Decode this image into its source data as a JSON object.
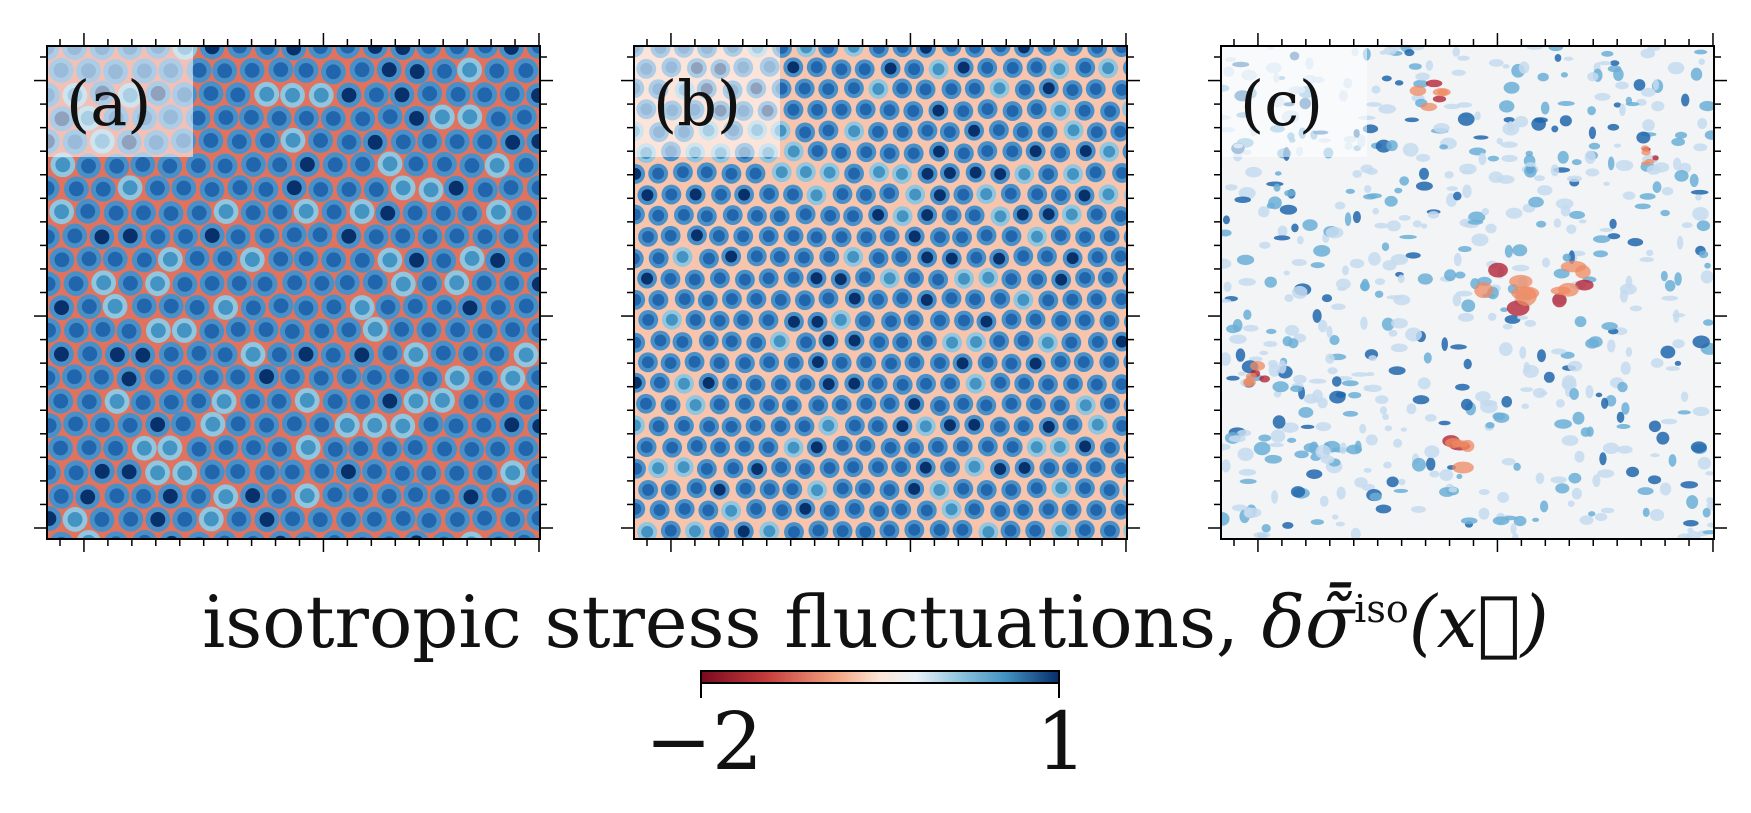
{
  "panels": [
    {
      "label": "(a)",
      "pattern": "ordered-hexagonal",
      "cell_color": "#2166ac",
      "boundary_color": "#d6604d"
    },
    {
      "label": "(b)",
      "pattern": "ordered-hexagonal-smaller",
      "cell_color": "#2166ac",
      "boundary_color": "#f4a582"
    },
    {
      "label": "(c)",
      "pattern": "disordered",
      "cell_color": "#92c5de",
      "boundary_color": "#d6604d"
    }
  ],
  "colorbar": {
    "title_main": "isotropic stress fluctuations, ",
    "title_symbol": "δσ̃̄",
    "title_sup": "iso",
    "title_arg": "(x⃗)",
    "min_label": "−2",
    "max_label": "1",
    "min_color": "#67001f",
    "mid_color": "#f7f7f7",
    "max_color": "#08306b"
  }
}
